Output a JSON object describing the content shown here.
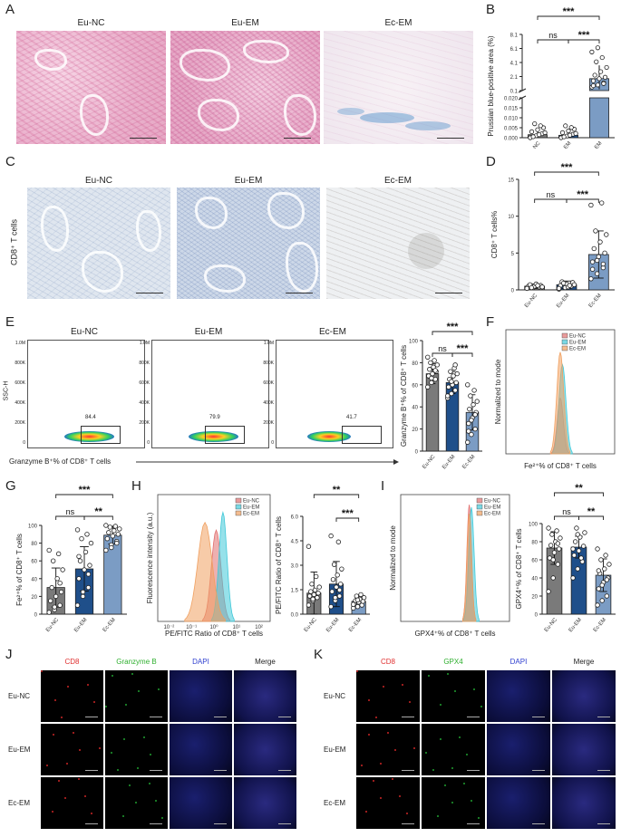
{
  "panel_letters": {
    "A": "A",
    "B": "B",
    "C": "C",
    "D": "D",
    "E": "E",
    "F": "F",
    "G": "G",
    "H": "H",
    "I": "I",
    "J": "J",
    "K": "K"
  },
  "groups": [
    "Eu-NC",
    "Eu-EM",
    "Ec-EM"
  ],
  "side_label_C": "CD8⁺ T cells",
  "flow": {
    "gate_values": [
      "84.4",
      "79.9",
      "41.7"
    ],
    "y_axis_label": "SSC-H",
    "y_ticks": [
      "1.0M",
      "800K",
      "600K",
      "400K",
      "200K",
      "0"
    ],
    "x_axis_label": "Granzyme B⁺% of CD8⁺ T cells"
  },
  "histF": {
    "xlabel": "Fe²⁺% of CD8⁺ T cells",
    "ylabel": "Normalized to mode",
    "legend": [
      "Eu-NC",
      "Eu-EM",
      "Ec-EM"
    ]
  },
  "histH": {
    "xlabel": "PE/FITC Ratio of CD8⁺ T cells",
    "ylabel": "Fluorescence intensity (a.u.)",
    "legend": [
      "Eu-NC",
      "Eu-EM",
      "Ec-EM"
    ],
    "xticks": [
      "10⁻²",
      "10⁻¹",
      "10⁰",
      "10¹",
      "10²"
    ]
  },
  "histI": {
    "xlabel": "GPX4⁺% of CD8⁺ T cells",
    "ylabel": "Normalized to mode",
    "legend": [
      "Eu-NC",
      "Eu-EM",
      "Ec-EM"
    ]
  },
  "colors": {
    "Eu-NC": "#7a7a7a",
    "Eu-EM": "#1f4f8a",
    "Ec-EM": "#7b9cc4",
    "hist_red": "#e07070",
    "hist_cyan": "#40c8d8",
    "hist_orange": "#f0a060"
  },
  "J": {
    "channels": [
      "CD8",
      "Granzyme B",
      "DAPI",
      "Merge"
    ],
    "rows": [
      "Eu-NC",
      "Eu-EM",
      "Ec-EM"
    ],
    "channel_colors": [
      "#e03030",
      "#30b030",
      "#3040d0",
      "#222222"
    ]
  },
  "K": {
    "channels": [
      "CD8",
      "GPX4",
      "DAPI",
      "Merge"
    ],
    "rows": [
      "Eu-NC",
      "Eu-EM",
      "Ec-EM"
    ],
    "channel_colors": [
      "#e03030",
      "#30b030",
      "#3040d0",
      "#222222"
    ]
  },
  "chart_data": [
    {
      "id": "B",
      "type": "bar",
      "categories": [
        "Eu-NC",
        "Eu-EM",
        "Ec-EM"
      ],
      "values": [
        0.0015,
        0.0012,
        1.8
      ],
      "errors": [
        0.002,
        0.0015,
        1.9
      ],
      "ylabel": "Prussian blue-positive area (%)",
      "yticks_top": [
        "0.1",
        "2.1",
        "4.1",
        "6.1",
        "8.1"
      ],
      "yticks_bottom": [
        "0.000",
        "0.005",
        "0.010",
        "0.015",
        "0.020"
      ],
      "sig": [
        "ns",
        "***",
        "***"
      ]
    },
    {
      "id": "D",
      "type": "bar",
      "categories": [
        "Eu-NC",
        "Eu-EM",
        "Ec-EM"
      ],
      "values": [
        0.5,
        0.7,
        4.8
      ],
      "errors": [
        0.3,
        0.5,
        3.2
      ],
      "ylim": [
        0,
        15
      ],
      "yticks": [
        "0",
        "5",
        "10",
        "15"
      ],
      "ylabel": "CD8⁺ T cells%",
      "points": [
        [
          0.2,
          0.3,
          0.4,
          0.5,
          0.5,
          0.6,
          0.7,
          0.8,
          0.4,
          0.3,
          0.6,
          0.2
        ],
        [
          0.1,
          0.3,
          0.5,
          0.6,
          0.8,
          1.0,
          1.1,
          0.4,
          0.7,
          0.9,
          0.6,
          0.2
        ],
        [
          1.5,
          2.2,
          3.0,
          3.8,
          4.5,
          5.0,
          5.6,
          6.5,
          7.5,
          8.0,
          11.8,
          11.5,
          4.0,
          3.5,
          2.8
        ]
      ],
      "sig": [
        "ns",
        "***",
        "***"
      ]
    },
    {
      "id": "E",
      "type": "bar",
      "categories": [
        "Eu-NC",
        "Eu-EM",
        "Ec-EM"
      ],
      "values": [
        70,
        62,
        35
      ],
      "errors": [
        9,
        10,
        16
      ],
      "ylim": [
        0,
        100
      ],
      "yticks": [
        "0",
        "20",
        "40",
        "60",
        "80",
        "100"
      ],
      "ylabel": "Granzyme B⁺% of CD8⁺ T cells",
      "points": [
        [
          58,
          62,
          65,
          68,
          70,
          72,
          74,
          76,
          78,
          80,
          82,
          85,
          66,
          73
        ],
        [
          48,
          52,
          55,
          58,
          60,
          62,
          65,
          68,
          70,
          72,
          75,
          50,
          63,
          78
        ],
        [
          8,
          15,
          20,
          25,
          30,
          35,
          38,
          42,
          45,
          50,
          55,
          60,
          28,
          33,
          18
        ]
      ],
      "sig": [
        "ns",
        "***",
        "***"
      ]
    },
    {
      "id": "G",
      "type": "bar",
      "categories": [
        "Eu-NC",
        "Eu-EM",
        "Ec-EM"
      ],
      "values": [
        30,
        51,
        89
      ],
      "errors": [
        22,
        25,
        10
      ],
      "ylim": [
        0,
        100
      ],
      "yticks": [
        "0",
        "20",
        "40",
        "60",
        "80",
        "100"
      ],
      "ylabel": "Fe²⁺% of CD8⁺ T cells",
      "points": [
        [
          2,
          5,
          10,
          15,
          20,
          25,
          30,
          40,
          50,
          60,
          68,
          72,
          8,
          35
        ],
        [
          10,
          20,
          30,
          40,
          50,
          55,
          60,
          70,
          80,
          85,
          90,
          95,
          25,
          45,
          65
        ],
        [
          72,
          78,
          82,
          85,
          88,
          90,
          92,
          94,
          96,
          98,
          99,
          100,
          75,
          80
        ]
      ],
      "sig": [
        "ns",
        "**",
        "***"
      ]
    },
    {
      "id": "H",
      "type": "bar",
      "categories": [
        "Eu-NC",
        "Eu-EM",
        "Ec-EM"
      ],
      "values": [
        1.4,
        2.0,
        0.85
      ],
      "errors": [
        1.4,
        1.5,
        0.3
      ],
      "ylim": [
        0,
        6.5
      ],
      "yticks": [
        "0.0",
        "1.5",
        "3.0",
        "4.5",
        "6.0"
      ],
      "ylabel": "PE/FITC Ratio of CD8⁺ T cells",
      "points": [
        [
          0.6,
          0.9,
          1.1,
          1.2,
          1.3,
          1.4,
          1.5,
          1.6,
          1.8,
          2.0,
          2.5,
          4.5,
          1.0
        ],
        [
          0.5,
          0.9,
          1.2,
          1.5,
          1.8,
          2.0,
          2.3,
          2.6,
          3.0,
          3.3,
          4.8,
          5.2,
          1.1,
          1.6
        ],
        [
          0.4,
          0.5,
          0.6,
          0.7,
          0.8,
          0.85,
          0.9,
          1.0,
          1.1,
          1.2,
          1.3,
          0.65,
          0.95
        ]
      ],
      "sig": [
        "***",
        "**"
      ]
    },
    {
      "id": "I",
      "type": "bar",
      "categories": [
        "Eu-NC",
        "Eu-EM",
        "Ec-EM"
      ],
      "values": [
        73,
        74,
        43
      ],
      "errors": [
        18,
        12,
        18
      ],
      "ylim": [
        0,
        100
      ],
      "yticks": [
        "0",
        "20",
        "40",
        "60",
        "80",
        "100"
      ],
      "ylabel": "GPX4⁺% of CD8⁺ T cells",
      "points": [
        [
          25,
          40,
          55,
          62,
          68,
          72,
          76,
          80,
          84,
          88,
          92,
          95,
          60,
          78
        ],
        [
          40,
          50,
          58,
          65,
          70,
          75,
          80,
          85,
          90,
          95,
          62,
          72,
          88
        ],
        [
          10,
          15,
          20,
          28,
          35,
          40,
          45,
          50,
          55,
          60,
          65,
          72,
          32,
          38,
          48
        ]
      ],
      "sig": [
        "ns",
        "**",
        "**"
      ]
    }
  ]
}
